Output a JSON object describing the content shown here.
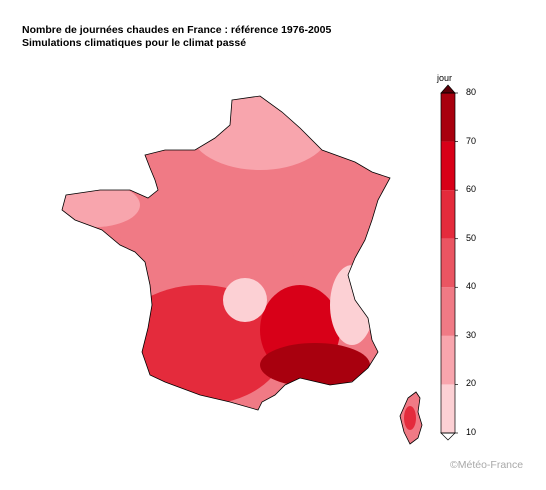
{
  "title_line1": "Nombre de journées chaudes en France : référence 1976-2005",
  "title_line2": "Simulations climatiques pour le climat passé",
  "legend": {
    "unit": "jour",
    "min": 10,
    "max": 80,
    "ticks": [
      "80",
      "70",
      "60",
      "50",
      "40",
      "30",
      "20",
      "10"
    ],
    "bins": [
      {
        "from": 10,
        "to": 20,
        "color": "#fcd0d4"
      },
      {
        "from": 20,
        "to": 30,
        "color": "#f8a5ad"
      },
      {
        "from": 30,
        "to": 40,
        "color": "#f07a85"
      },
      {
        "from": 40,
        "to": 50,
        "color": "#ea5562"
      },
      {
        "from": 50,
        "to": 60,
        "color": "#e42b3c"
      },
      {
        "from": 60,
        "to": 70,
        "color": "#d80018"
      },
      {
        "from": 70,
        "to": 80,
        "color": "#a8000e"
      }
    ],
    "over_color": "#5c0008",
    "under_color": "#ffffff"
  },
  "credit": "©Météo-France",
  "regions": [
    {
      "name": "nord",
      "value": 20
    },
    {
      "name": "bretagne",
      "value": 22
    },
    {
      "name": "centre",
      "value": 34
    },
    {
      "name": "est",
      "value": 38
    },
    {
      "name": "sud-ouest",
      "value": 55
    },
    {
      "name": "rhone",
      "value": 62
    },
    {
      "name": "mediterranee",
      "value": 75
    },
    {
      "name": "alpes",
      "value": 14
    },
    {
      "name": "corse",
      "value": 30
    }
  ]
}
